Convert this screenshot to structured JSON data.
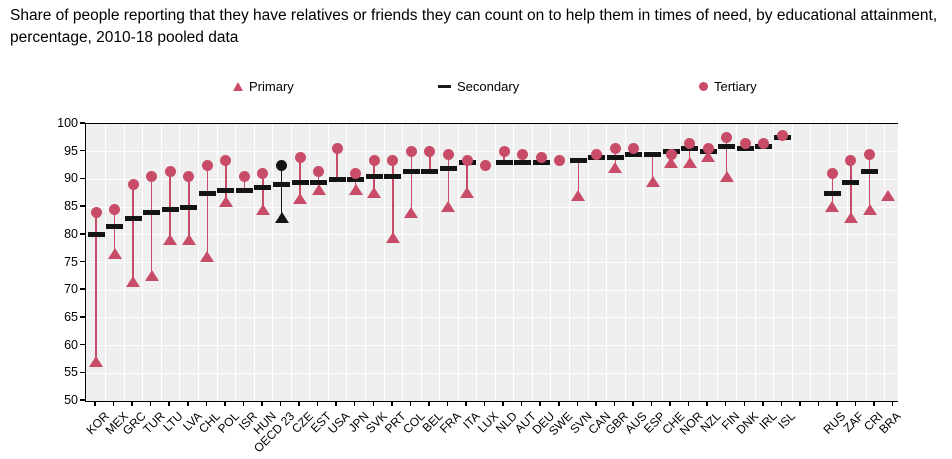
{
  "title": "Share of people reporting that they have relatives or friends they can count on to help them in times of need, by educational attainment, percentage, 2010-18 pooled data",
  "legend": [
    {
      "label": "Primary",
      "marker": "triangle-icon"
    },
    {
      "label": "Secondary",
      "marker": "dash-icon"
    },
    {
      "label": "Tertiary",
      "marker": "circle-icon"
    }
  ],
  "colors": {
    "series": "#c84c68",
    "highlight": "#141414",
    "plot_background": "#efeff0",
    "gridline": "#ffffff",
    "axis": "#000000"
  },
  "chart_data": {
    "type": "scatter",
    "subtype": "dumbbell-range",
    "title": "Share of people reporting that they have relatives or friends they can count on to help them in times of need, by educational attainment, percentage, 2010-18 pooled data",
    "xlabel": "",
    "ylabel": "",
    "ylim": [
      50,
      100
    ],
    "yticks": [
      50,
      55,
      60,
      65,
      70,
      75,
      80,
      85,
      90,
      95,
      100
    ],
    "grid": true,
    "legend_position": "top",
    "series_names": [
      "Primary",
      "Secondary",
      "Tertiary"
    ],
    "highlight_category": "OECD 23",
    "gap_after": "ISL",
    "points": [
      {
        "country": "KOR",
        "primary": 57,
        "secondary": 80,
        "tertiary": 84,
        "highlight": false,
        "gap_before": false
      },
      {
        "country": "MEX",
        "primary": 76.5,
        "secondary": 81.5,
        "tertiary": 84.5,
        "highlight": false,
        "gap_before": false
      },
      {
        "country": "GRC",
        "primary": 71.5,
        "secondary": 83,
        "tertiary": 89,
        "highlight": false,
        "gap_before": false
      },
      {
        "country": "TUR",
        "primary": 72.5,
        "secondary": 84,
        "tertiary": 90.5,
        "highlight": false,
        "gap_before": false
      },
      {
        "country": "LTU",
        "primary": 79,
        "secondary": 84.5,
        "tertiary": 91.5,
        "highlight": false,
        "gap_before": false
      },
      {
        "country": "LVA",
        "primary": 79,
        "secondary": 85,
        "tertiary": 90.5,
        "highlight": false,
        "gap_before": false
      },
      {
        "country": "CHL",
        "primary": 76,
        "secondary": 87.5,
        "tertiary": 92.5,
        "highlight": false,
        "gap_before": false
      },
      {
        "country": "POL",
        "primary": 86,
        "secondary": 88,
        "tertiary": 93.5,
        "highlight": false,
        "gap_before": false
      },
      {
        "country": "ISR",
        "primary": null,
        "secondary": 88,
        "tertiary": 90.5,
        "highlight": false,
        "gap_before": false
      },
      {
        "country": "HUN",
        "primary": 84.5,
        "secondary": 88.5,
        "tertiary": 91,
        "highlight": false,
        "gap_before": false
      },
      {
        "country": "OECD 23",
        "primary": 83,
        "secondary": 89,
        "tertiary": 92.5,
        "highlight": true,
        "gap_before": false
      },
      {
        "country": "CZE",
        "primary": 86.5,
        "secondary": 89.5,
        "tertiary": 94,
        "highlight": false,
        "gap_before": false
      },
      {
        "country": "EST",
        "primary": 88,
        "secondary": 89.5,
        "tertiary": 91.5,
        "highlight": false,
        "gap_before": false
      },
      {
        "country": "USA",
        "primary": null,
        "secondary": 90,
        "tertiary": 95.5,
        "highlight": false,
        "gap_before": false
      },
      {
        "country": "JPN",
        "primary": 88,
        "secondary": 90,
        "tertiary": 91,
        "highlight": false,
        "gap_before": false
      },
      {
        "country": "SVK",
        "primary": 87.5,
        "secondary": 90.5,
        "tertiary": 93.5,
        "highlight": false,
        "gap_before": false
      },
      {
        "country": "PRT",
        "primary": 79.5,
        "secondary": 90.5,
        "tertiary": 93.5,
        "highlight": false,
        "gap_before": false
      },
      {
        "country": "COL",
        "primary": 84,
        "secondary": 91.5,
        "tertiary": 95,
        "highlight": false,
        "gap_before": false
      },
      {
        "country": "BEL",
        "primary": null,
        "secondary": 91.5,
        "tertiary": 95,
        "highlight": false,
        "gap_before": false
      },
      {
        "country": "FRA",
        "primary": 85,
        "secondary": 92,
        "tertiary": 94.5,
        "highlight": false,
        "gap_before": false
      },
      {
        "country": "ITA",
        "primary": 87.5,
        "secondary": 93,
        "tertiary": 93.5,
        "highlight": false,
        "gap_before": false
      },
      {
        "country": "LUX",
        "primary": null,
        "secondary": null,
        "tertiary": 92.5,
        "highlight": false,
        "gap_before": false
      },
      {
        "country": "NLD",
        "primary": null,
        "secondary": 93,
        "tertiary": 95,
        "highlight": false,
        "gap_before": false
      },
      {
        "country": "AUT",
        "primary": null,
        "secondary": 93,
        "tertiary": 94.5,
        "highlight": false,
        "gap_before": false
      },
      {
        "country": "DEU",
        "primary": null,
        "secondary": 93,
        "tertiary": 94,
        "highlight": false,
        "gap_before": false
      },
      {
        "country": "SWE",
        "primary": null,
        "secondary": null,
        "tertiary": 93.5,
        "highlight": false,
        "gap_before": false
      },
      {
        "country": "SVN",
        "primary": 87,
        "secondary": 93.5,
        "tertiary": null,
        "highlight": false,
        "gap_before": false
      },
      {
        "country": "CAN",
        "primary": null,
        "secondary": 94,
        "tertiary": 94.5,
        "highlight": false,
        "gap_before": false
      },
      {
        "country": "GBR",
        "primary": 92,
        "secondary": 94,
        "tertiary": 95.5,
        "highlight": false,
        "gap_before": false
      },
      {
        "country": "AUS",
        "primary": null,
        "secondary": 94.5,
        "tertiary": 95.5,
        "highlight": false,
        "gap_before": false
      },
      {
        "country": "ESP",
        "primary": 89.5,
        "secondary": 94.5,
        "tertiary": null,
        "highlight": false,
        "gap_before": false
      },
      {
        "country": "CHE",
        "primary": 93,
        "secondary": 95,
        "tertiary": 94.5,
        "highlight": false,
        "gap_before": false
      },
      {
        "country": "NOR",
        "primary": 93,
        "secondary": 95.5,
        "tertiary": 96.5,
        "highlight": false,
        "gap_before": false
      },
      {
        "country": "NZL",
        "primary": 94,
        "secondary": 95,
        "tertiary": 95.5,
        "highlight": false,
        "gap_before": false
      },
      {
        "country": "FIN",
        "primary": 90.5,
        "secondary": 96,
        "tertiary": 97.5,
        "highlight": false,
        "gap_before": false
      },
      {
        "country": "DNK",
        "primary": null,
        "secondary": 95.5,
        "tertiary": 96.5,
        "highlight": false,
        "gap_before": false
      },
      {
        "country": "IRL",
        "primary": null,
        "secondary": 96,
        "tertiary": 96.5,
        "highlight": false,
        "gap_before": false
      },
      {
        "country": "ISL",
        "primary": null,
        "secondary": 97.5,
        "tertiary": 98,
        "highlight": false,
        "gap_before": false
      },
      {
        "country": "RUS",
        "primary": 85,
        "secondary": 87.5,
        "tertiary": 91,
        "highlight": false,
        "gap_before": true
      },
      {
        "country": "ZAF",
        "primary": 83,
        "secondary": 89.5,
        "tertiary": 93.5,
        "highlight": false,
        "gap_before": false
      },
      {
        "country": "CRI",
        "primary": 84.5,
        "secondary": 91.5,
        "tertiary": 94.5,
        "highlight": false,
        "gap_before": false
      },
      {
        "country": "BRA",
        "primary": 87,
        "secondary": null,
        "tertiary": null,
        "highlight": false,
        "gap_before": false
      }
    ]
  }
}
